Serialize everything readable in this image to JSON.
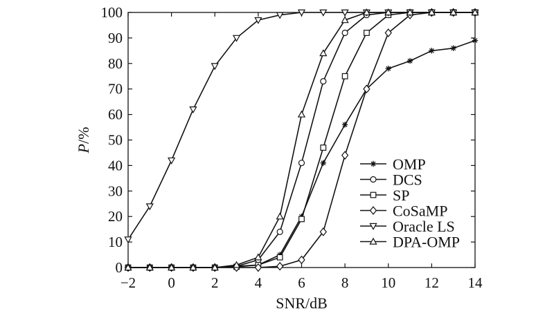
{
  "chart_data": {
    "type": "line",
    "xlabel": "SNR/dB",
    "ylabel_italic": "P",
    "ylabel_rest": "/%",
    "xlim": [
      -2,
      14
    ],
    "ylim": [
      0,
      100
    ],
    "x_ticks": [
      -2,
      0,
      2,
      4,
      6,
      8,
      10,
      12,
      14
    ],
    "x_tick_labels": [
      "−2",
      "0",
      "2",
      "4",
      "6",
      "8",
      "10",
      "12",
      "14"
    ],
    "y_ticks": [
      0,
      10,
      20,
      30,
      40,
      50,
      60,
      70,
      80,
      90,
      100
    ],
    "y_tick_labels": [
      "0",
      "10",
      "20",
      "30",
      "40",
      "50",
      "60",
      "70",
      "80",
      "90",
      "100"
    ],
    "grid": false,
    "legend_position": "right",
    "x": [
      -2,
      -1,
      0,
      1,
      2,
      3,
      4,
      5,
      6,
      7,
      8,
      9,
      10,
      11,
      12,
      13,
      14
    ],
    "series": [
      {
        "name": "OMP",
        "marker": "star",
        "values": [
          0,
          0,
          0,
          0,
          0,
          0.5,
          1,
          5,
          20,
          41,
          56,
          70,
          78,
          81,
          85,
          86,
          89
        ]
      },
      {
        "name": "DCS",
        "marker": "circle",
        "values": [
          0,
          0,
          0,
          0,
          0,
          0.5,
          3,
          14,
          41,
          73,
          92,
          99,
          100,
          100,
          100,
          100,
          100
        ]
      },
      {
        "name": "SP",
        "marker": "square",
        "values": [
          0,
          0,
          0,
          0,
          0,
          0.3,
          1,
          4,
          19,
          47,
          75,
          92,
          99,
          100,
          100,
          100,
          100
        ]
      },
      {
        "name": "CoSaMP",
        "marker": "diamond",
        "values": [
          0,
          0,
          0,
          0,
          0,
          0,
          0,
          0.5,
          3,
          14,
          44,
          70,
          92,
          99,
          100,
          100,
          100
        ]
      },
      {
        "name": "Oracle LS",
        "marker": "triangle-down",
        "values": [
          11,
          24,
          42,
          62,
          79,
          90,
          97,
          99,
          100,
          100,
          100,
          100,
          100,
          100,
          100,
          100,
          100
        ]
      },
      {
        "name": "DPA-OMP",
        "marker": "triangle-up",
        "values": [
          0,
          0,
          0,
          0,
          0,
          1,
          4,
          20,
          60,
          84,
          97,
          100,
          100,
          100,
          100,
          100,
          100
        ]
      }
    ]
  }
}
